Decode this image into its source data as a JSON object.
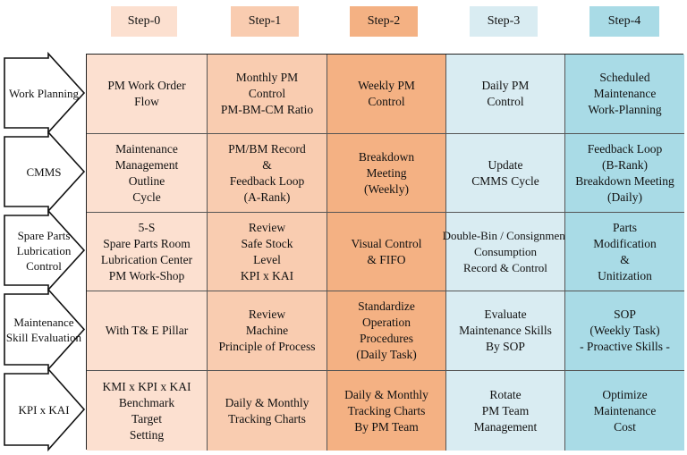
{
  "colors": {
    "step0": "#fce0d0",
    "step1": "#f9ccb0",
    "step2": "#f4b183",
    "step3": "#d9ecf2",
    "step4": "#a9dbe6"
  },
  "steps": [
    "Step-0",
    "Step-1",
    "Step-2",
    "Step-3",
    "Step-4"
  ],
  "rows": [
    {
      "label": "Work\nPlanning",
      "cells": [
        "PM Work Order\nFlow",
        "Monthly PM\nControl\nPM-BM-CM Ratio",
        "Weekly PM\nControl",
        "Daily PM\nControl",
        "Scheduled\nMaintenance\nWork-Planning"
      ]
    },
    {
      "label": "CMMS",
      "cells": [
        "Maintenance\nManagement\nOutline\nCycle",
        "PM/BM Record\n&\nFeedback Loop\n(A-Rank)",
        "Breakdown\nMeeting\n(Weekly)",
        "Update\nCMMS Cycle",
        "Feedback Loop\n(B-Rank)\nBreakdown Meeting\n(Daily)"
      ]
    },
    {
      "label": "Spare Parts\nLubrication\nControl",
      "cells": [
        "5-S\nSpare Parts Room\nLubrication Center\nPM Work-Shop",
        "Review\nSafe Stock\nLevel\nKPI x KAI",
        "Visual Control\n& FIFO",
        "Double-Bin / Consignment\nConsumption\nRecord & Control",
        "Parts\nModification\n&\nUnitization"
      ]
    },
    {
      "label": "Maintenance\nSkill\nEvaluation",
      "cells": [
        "With T& E Pillar",
        "Review\nMachine\nPrinciple of Process",
        "Standardize\nOperation\nProcedures\n(Daily Task)",
        "Evaluate\nMaintenance Skills\nBy SOP",
        "SOP\n(Weekly Task)\n- Proactive Skills -"
      ]
    },
    {
      "label": "KPI x KAI",
      "cells": [
        "KMI x KPI x KAI\nBenchmark\nTarget\nSetting",
        "Daily & Monthly\nTracking Charts",
        "Daily & Monthly\nTracking Charts\nBy PM Team",
        "Rotate\nPM Team\nManagement",
        "Optimize\nMaintenance\nCost"
      ]
    }
  ]
}
